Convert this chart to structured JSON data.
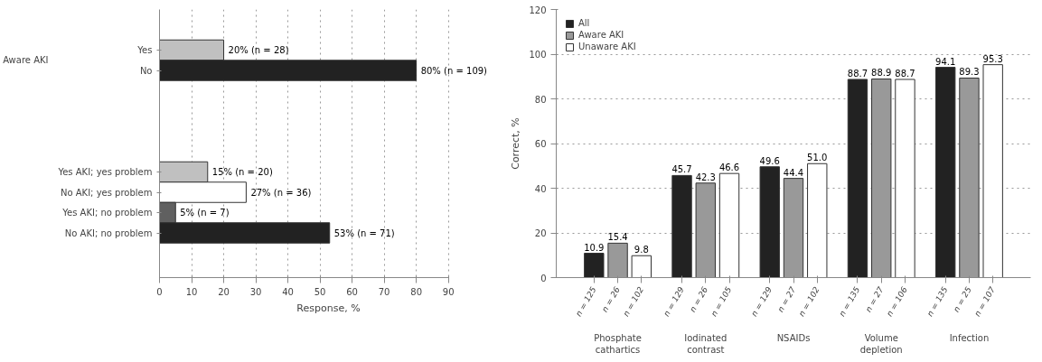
{
  "chart_data": [
    {
      "type": "bar",
      "orientation": "horizontal",
      "xlabel": "Response, %",
      "categories": [
        "Yes",
        "No",
        null,
        null,
        null,
        null,
        "Yes AKI; yes problem",
        "No AKI; yes problem",
        "Yes AKI; no problem",
        "No AKI; no problem"
      ],
      "values": [
        20,
        80,
        null,
        null,
        null,
        null,
        15,
        27,
        5,
        53
      ],
      "colors": [
        "#c0c0c0",
        "#222222",
        "#ffffff",
        "#ffffff",
        "#ffffff",
        "#ffffff",
        "#c0c0c0",
        "#ffffff",
        "#606060",
        "#222222"
      ],
      "value_labels": [
        "20% (n = 28)",
        "80% (n = 109)",
        null,
        null,
        null,
        null,
        "15% (n = 20)",
        "27% (n = 36)",
        "5% (n = 7)",
        "53% (n = 71)"
      ],
      "annotations": [
        "Aware AKI"
      ],
      "xlim": [
        0,
        90
      ],
      "xticks": [
        0,
        10,
        20,
        30,
        40,
        50,
        60,
        70,
        80,
        90
      ],
      "grid": "x",
      "legend": false
    },
    {
      "type": "bar",
      "ylabel": "Correct, %",
      "categories": [
        "Phosphate\ncathartics",
        "Iodinated\ncontrast",
        "NSAIDs",
        "Volume\ndepletion",
        "Infection"
      ],
      "series": [
        {
          "name": "All",
          "color": "#222222",
          "values": [
            10.9,
            45.7,
            49.6,
            88.7,
            94.1
          ],
          "value_labels": [
            "10.9",
            "45.7",
            "49.6",
            "88.7",
            "94.1"
          ]
        },
        {
          "name": "Aware AKI",
          "color": "#999999",
          "values": [
            15.4,
            42.3,
            44.4,
            88.9,
            89.3
          ],
          "value_labels": [
            "15.4",
            "42.3",
            "44.4",
            "88.9",
            "89.3"
          ]
        },
        {
          "name": "Unaware AKI",
          "color": "#ffffff",
          "values": [
            9.8,
            46.6,
            51.0,
            88.7,
            95.3
          ],
          "value_labels": [
            "9.8",
            "46.6",
            "51.0",
            "88.7",
            "95.3"
          ]
        }
      ],
      "annotations": [
        "n = 125",
        "n = 26",
        "n = 102",
        "n = 129",
        "n = 26",
        "n = 105",
        "n = 129",
        "n = 27",
        "n = 102",
        "n = 135",
        "n = 27",
        "n = 106",
        "n = 135",
        "n = 25",
        "n = 107"
      ],
      "ylim": [
        0,
        120
      ],
      "yticks": [
        0,
        20,
        40,
        60,
        80,
        100,
        120
      ],
      "grid": "y",
      "legend": "top left"
    }
  ]
}
